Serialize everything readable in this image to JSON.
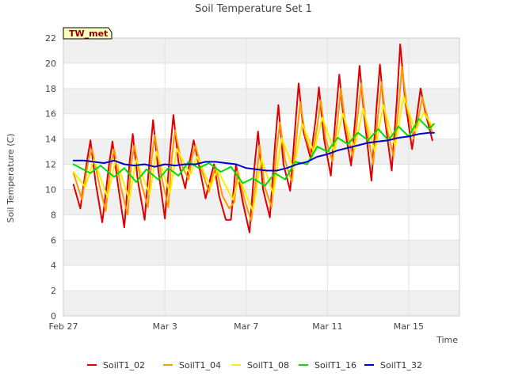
{
  "chart_data": {
    "type": "line",
    "title": "Soil Temperature Set 1",
    "xlabel": "Time",
    "ylabel": "Soil Temperature (C)",
    "badge": "TW_met",
    "ylim": [
      0,
      22
    ],
    "xlim": [
      "2000-02-27",
      "2000-03-17 12:00"
    ],
    "x_ticks": [
      "Feb 27",
      "Mar 3",
      "Mar 7",
      "Mar 11",
      "Mar 15"
    ],
    "y_ticks": [
      0,
      2,
      4,
      6,
      8,
      10,
      12,
      14,
      16,
      18,
      20,
      22
    ],
    "grid": "horizontal bands",
    "legend": "bottom",
    "colors": {
      "SoilT1_02": "#dd0000",
      "SoilT1_04": "#ff9900",
      "SoilT1_08": "#ffee00",
      "SoilT1_16": "#00dd00",
      "SoilT1_32": "#0000cc",
      "band": "#f0f0f0",
      "badge_fill": "#ffffc0"
    },
    "series": [
      {
        "name": "SoilT1_02",
        "points": [
          [
            "2000-02-27 12:00",
            10.4
          ],
          [
            "2000-02-27 20:00",
            8.5
          ],
          [
            "2000-02-28 04:00",
            12.3
          ],
          [
            "2000-02-28 08:00",
            13.9
          ],
          [
            "2000-02-28 14:00",
            10.6
          ],
          [
            "2000-02-28 22:00",
            7.4
          ],
          [
            "2000-02-29 06:00",
            12.0
          ],
          [
            "2000-02-29 10:00",
            13.8
          ],
          [
            "2000-02-29 16:00",
            10.6
          ],
          [
            "2000-03-01 00:00",
            7.0
          ],
          [
            "2000-03-01 06:00",
            12.0
          ],
          [
            "2000-03-01 10:00",
            14.4
          ],
          [
            "2000-03-01 16:00",
            10.7
          ],
          [
            "2000-03-02 00:00",
            7.6
          ],
          [
            "2000-03-02 06:00",
            12.5
          ],
          [
            "2000-03-02 10:00",
            15.5
          ],
          [
            "2000-03-02 16:00",
            11.6
          ],
          [
            "2000-03-03 00:00",
            7.7
          ],
          [
            "2000-03-03 06:00",
            13.0
          ],
          [
            "2000-03-03 10:00",
            15.9
          ],
          [
            "2000-03-03 16:00",
            12.2
          ],
          [
            "2000-03-04 00:00",
            10.1
          ],
          [
            "2000-03-04 06:00",
            12.5
          ],
          [
            "2000-03-04 10:00",
            13.9
          ],
          [
            "2000-03-04 16:00",
            12.0
          ],
          [
            "2000-03-05 00:00",
            9.3
          ],
          [
            "2000-03-05 06:00",
            11.0
          ],
          [
            "2000-03-05 10:00",
            12.0
          ],
          [
            "2000-03-05 16:00",
            9.5
          ],
          [
            "2000-03-06 00:00",
            7.6
          ],
          [
            "2000-03-06 06:00",
            7.6
          ],
          [
            "2000-03-06 12:00",
            12.0
          ],
          [
            "2000-03-06 20:00",
            9.0
          ],
          [
            "2000-03-07 04:00",
            6.6
          ],
          [
            "2000-03-07 10:00",
            12.0
          ],
          [
            "2000-03-07 14:00",
            14.6
          ],
          [
            "2000-03-07 20:00",
            10.0
          ],
          [
            "2000-03-08 04:00",
            7.8
          ],
          [
            "2000-03-08 10:00",
            13.5
          ],
          [
            "2000-03-08 14:00",
            16.7
          ],
          [
            "2000-03-08 20:00",
            12.0
          ],
          [
            "2000-03-09 04:00",
            9.9
          ],
          [
            "2000-03-09 10:00",
            15.0
          ],
          [
            "2000-03-09 14:00",
            18.4
          ],
          [
            "2000-03-09 20:00",
            14.5
          ],
          [
            "2000-03-10 04:00",
            12.5
          ],
          [
            "2000-03-10 10:00",
            15.5
          ],
          [
            "2000-03-10 14:00",
            18.1
          ],
          [
            "2000-03-10 20:00",
            14.0
          ],
          [
            "2000-03-11 04:00",
            11.1
          ],
          [
            "2000-03-11 10:00",
            16.0
          ],
          [
            "2000-03-11 14:00",
            19.1
          ],
          [
            "2000-03-11 20:00",
            15.0
          ],
          [
            "2000-03-12 04:00",
            11.9
          ],
          [
            "2000-03-12 10:00",
            16.5
          ],
          [
            "2000-03-12 14:00",
            19.8
          ],
          [
            "2000-03-12 20:00",
            15.5
          ],
          [
            "2000-03-13 04:00",
            10.7
          ],
          [
            "2000-03-13 10:00",
            16.5
          ],
          [
            "2000-03-13 14:00",
            19.9
          ],
          [
            "2000-03-13 20:00",
            15.5
          ],
          [
            "2000-03-14 04:00",
            11.5
          ],
          [
            "2000-03-14 10:00",
            17.0
          ],
          [
            "2000-03-14 14:00",
            21.5
          ],
          [
            "2000-03-14 20:00",
            17.0
          ],
          [
            "2000-03-15 04:00",
            13.2
          ],
          [
            "2000-03-15 10:00",
            16.0
          ],
          [
            "2000-03-15 14:00",
            18.0
          ],
          [
            "2000-03-15 20:00",
            16.0
          ],
          [
            "2000-03-16 04:00",
            13.9
          ]
        ]
      },
      {
        "name": "SoilT1_04",
        "points": [
          [
            "2000-02-27 12:00",
            11.3
          ],
          [
            "2000-02-27 22:00",
            9.2
          ],
          [
            "2000-02-28 06:00",
            12.5
          ],
          [
            "2000-02-28 10:00",
            13.2
          ],
          [
            "2000-02-28 18:00",
            10.5
          ],
          [
            "2000-02-29 02:00",
            8.3
          ],
          [
            "2000-02-29 08:00",
            11.9
          ],
          [
            "2000-02-29 12:00",
            13.2
          ],
          [
            "2000-02-29 20:00",
            10.2
          ],
          [
            "2000-03-01 04:00",
            8.0
          ],
          [
            "2000-03-01 08:00",
            12.0
          ],
          [
            "2000-03-01 12:00",
            13.5
          ],
          [
            "2000-03-01 20:00",
            10.5
          ],
          [
            "2000-03-02 04:00",
            8.6
          ],
          [
            "2000-03-02 08:00",
            12.2
          ],
          [
            "2000-03-02 12:00",
            14.3
          ],
          [
            "2000-03-02 20:00",
            11.0
          ],
          [
            "2000-03-03 04:00",
            8.6
          ],
          [
            "2000-03-03 08:00",
            12.5
          ],
          [
            "2000-03-03 12:00",
            14.7
          ],
          [
            "2000-03-03 20:00",
            11.9
          ],
          [
            "2000-03-04 04:00",
            10.8
          ],
          [
            "2000-03-04 08:00",
            12.5
          ],
          [
            "2000-03-04 12:00",
            13.5
          ],
          [
            "2000-03-04 20:00",
            11.4
          ],
          [
            "2000-03-05 04:00",
            9.8
          ],
          [
            "2000-03-05 08:00",
            11.0
          ],
          [
            "2000-03-05 12:00",
            11.8
          ],
          [
            "2000-03-05 20:00",
            9.5
          ],
          [
            "2000-03-06 04:00",
            8.5
          ],
          [
            "2000-03-06 10:00",
            9.0
          ],
          [
            "2000-03-06 14:00",
            11.5
          ],
          [
            "2000-03-06 22:00",
            9.2
          ],
          [
            "2000-03-07 06:00",
            7.5
          ],
          [
            "2000-03-07 12:00",
            11.0
          ],
          [
            "2000-03-07 16:00",
            13.5
          ],
          [
            "2000-03-07 22:00",
            10.2
          ],
          [
            "2000-03-08 06:00",
            8.6
          ],
          [
            "2000-03-08 12:00",
            13.2
          ],
          [
            "2000-03-08 16:00",
            15.3
          ],
          [
            "2000-03-08 22:00",
            12.3
          ],
          [
            "2000-03-09 06:00",
            10.6
          ],
          [
            "2000-03-09 12:00",
            14.5
          ],
          [
            "2000-03-09 16:00",
            16.9
          ],
          [
            "2000-03-09 22:00",
            14.2
          ],
          [
            "2000-03-10 06:00",
            12.6
          ],
          [
            "2000-03-10 12:00",
            15.0
          ],
          [
            "2000-03-10 16:00",
            17.1
          ],
          [
            "2000-03-10 22:00",
            14.0
          ],
          [
            "2000-03-11 06:00",
            12.2
          ],
          [
            "2000-03-11 12:00",
            15.5
          ],
          [
            "2000-03-11 16:00",
            18.0
          ],
          [
            "2000-03-11 22:00",
            14.8
          ],
          [
            "2000-03-12 06:00",
            12.6
          ],
          [
            "2000-03-12 12:00",
            16.0
          ],
          [
            "2000-03-12 16:00",
            18.4
          ],
          [
            "2000-03-12 22:00",
            15.0
          ],
          [
            "2000-03-13 06:00",
            12.0
          ],
          [
            "2000-03-13 12:00",
            16.0
          ],
          [
            "2000-03-13 16:00",
            18.5
          ],
          [
            "2000-03-13 22:00",
            15.0
          ],
          [
            "2000-03-14 06:00",
            12.6
          ],
          [
            "2000-03-14 12:00",
            16.5
          ],
          [
            "2000-03-14 16:00",
            19.7
          ],
          [
            "2000-03-14 22:00",
            16.5
          ],
          [
            "2000-03-15 06:00",
            14.0
          ],
          [
            "2000-03-15 12:00",
            15.8
          ],
          [
            "2000-03-15 16:00",
            17.3
          ],
          [
            "2000-03-15 22:00",
            15.8
          ],
          [
            "2000-03-16 04:00",
            14.5
          ]
        ]
      },
      {
        "name": "SoilT1_08",
        "points": [
          [
            "2000-02-27 12:00",
            11.4
          ],
          [
            "2000-02-28 02:00",
            10.2
          ],
          [
            "2000-02-28 12:00",
            12.4
          ],
          [
            "2000-02-29 04:00",
            9.4
          ],
          [
            "2000-02-29 14:00",
            12.4
          ],
          [
            "2000-03-01 06:00",
            9.2
          ],
          [
            "2000-03-01 14:00",
            12.4
          ],
          [
            "2000-03-02 06:00",
            9.6
          ],
          [
            "2000-03-02 14:00",
            13.0
          ],
          [
            "2000-03-03 06:00",
            9.7
          ],
          [
            "2000-03-03 14:00",
            13.2
          ],
          [
            "2000-03-04 06:00",
            11.2
          ],
          [
            "2000-03-04 14:00",
            12.6
          ],
          [
            "2000-03-05 06:00",
            10.2
          ],
          [
            "2000-03-05 14:00",
            11.6
          ],
          [
            "2000-03-06 08:00",
            9.2
          ],
          [
            "2000-03-06 16:00",
            10.9
          ],
          [
            "2000-03-07 08:00",
            8.3
          ],
          [
            "2000-03-07 18:00",
            12.5
          ],
          [
            "2000-03-08 08:00",
            9.6
          ],
          [
            "2000-03-08 18:00",
            14.1
          ],
          [
            "2000-03-09 08:00",
            11.6
          ],
          [
            "2000-03-09 18:00",
            15.2
          ],
          [
            "2000-03-10 08:00",
            13.0
          ],
          [
            "2000-03-10 18:00",
            15.7
          ],
          [
            "2000-03-11 08:00",
            13.0
          ],
          [
            "2000-03-11 18:00",
            16.0
          ],
          [
            "2000-03-12 08:00",
            13.2
          ],
          [
            "2000-03-12 18:00",
            16.4
          ],
          [
            "2000-03-13 08:00",
            13.0
          ],
          [
            "2000-03-13 18:00",
            16.7
          ],
          [
            "2000-03-14 08:00",
            13.4
          ],
          [
            "2000-03-14 18:00",
            17.4
          ],
          [
            "2000-03-15 08:00",
            14.6
          ],
          [
            "2000-03-15 18:00",
            16.1
          ],
          [
            "2000-03-16 04:00",
            15.0
          ]
        ]
      },
      {
        "name": "SoilT1_16",
        "points": [
          [
            "2000-02-27 12:00",
            12.0
          ],
          [
            "2000-02-28 08:00",
            11.3
          ],
          [
            "2000-02-28 20:00",
            11.9
          ],
          [
            "2000-02-29 12:00",
            11.0
          ],
          [
            "2000-03-01 00:00",
            11.7
          ],
          [
            "2000-03-01 14:00",
            10.6
          ],
          [
            "2000-03-02 02:00",
            11.6
          ],
          [
            "2000-03-02 16:00",
            10.8
          ],
          [
            "2000-03-03 04:00",
            11.7
          ],
          [
            "2000-03-03 16:00",
            11.1
          ],
          [
            "2000-03-04 04:00",
            12.2
          ],
          [
            "2000-03-04 16:00",
            11.7
          ],
          [
            "2000-03-05 04:00",
            12.1
          ],
          [
            "2000-03-05 18:00",
            11.4
          ],
          [
            "2000-03-06 06:00",
            11.8
          ],
          [
            "2000-03-06 20:00",
            10.5
          ],
          [
            "2000-03-07 08:00",
            10.9
          ],
          [
            "2000-03-07 22:00",
            10.3
          ],
          [
            "2000-03-08 10:00",
            11.3
          ],
          [
            "2000-03-08 22:00",
            10.8
          ],
          [
            "2000-03-09 10:00",
            12.2
          ],
          [
            "2000-03-10 00:00",
            12.0
          ],
          [
            "2000-03-10 12:00",
            13.4
          ],
          [
            "2000-03-11 00:00",
            13.0
          ],
          [
            "2000-03-11 12:00",
            14.1
          ],
          [
            "2000-03-12 00:00",
            13.6
          ],
          [
            "2000-03-12 12:00",
            14.5
          ],
          [
            "2000-03-13 00:00",
            13.9
          ],
          [
            "2000-03-13 12:00",
            14.8
          ],
          [
            "2000-03-14 00:00",
            13.9
          ],
          [
            "2000-03-14 12:00",
            15.0
          ],
          [
            "2000-03-15 00:00",
            14.2
          ],
          [
            "2000-03-15 12:00",
            15.6
          ],
          [
            "2000-03-16 00:00",
            14.8
          ],
          [
            "2000-03-16 06:00",
            15.2
          ]
        ]
      },
      {
        "name": "SoilT1_32",
        "points": [
          [
            "2000-02-27 12:00",
            12.3
          ],
          [
            "2000-02-28 00:00",
            12.3
          ],
          [
            "2000-02-28 12:00",
            12.2
          ],
          [
            "2000-02-29 00:00",
            12.1
          ],
          [
            "2000-02-29 12:00",
            12.3
          ],
          [
            "2000-03-01 00:00",
            12.0
          ],
          [
            "2000-03-01 12:00",
            11.9
          ],
          [
            "2000-03-02 00:00",
            12.0
          ],
          [
            "2000-03-02 12:00",
            11.8
          ],
          [
            "2000-03-03 00:00",
            12.0
          ],
          [
            "2000-03-03 12:00",
            11.9
          ],
          [
            "2000-03-04 00:00",
            12.0
          ],
          [
            "2000-03-04 12:00",
            12.0
          ],
          [
            "2000-03-05 00:00",
            12.2
          ],
          [
            "2000-03-05 12:00",
            12.2
          ],
          [
            "2000-03-06 00:00",
            12.1
          ],
          [
            "2000-03-06 12:00",
            12.0
          ],
          [
            "2000-03-07 00:00",
            11.7
          ],
          [
            "2000-03-07 12:00",
            11.6
          ],
          [
            "2000-03-08 00:00",
            11.5
          ],
          [
            "2000-03-08 12:00",
            11.5
          ],
          [
            "2000-03-09 00:00",
            11.7
          ],
          [
            "2000-03-09 12:00",
            12.0
          ],
          [
            "2000-03-10 00:00",
            12.2
          ],
          [
            "2000-03-10 12:00",
            12.6
          ],
          [
            "2000-03-11 00:00",
            12.8
          ],
          [
            "2000-03-11 12:00",
            13.1
          ],
          [
            "2000-03-12 00:00",
            13.3
          ],
          [
            "2000-03-12 12:00",
            13.5
          ],
          [
            "2000-03-13 00:00",
            13.7
          ],
          [
            "2000-03-13 12:00",
            13.8
          ],
          [
            "2000-03-14 00:00",
            13.9
          ],
          [
            "2000-03-14 12:00",
            14.1
          ],
          [
            "2000-03-15 00:00",
            14.2
          ],
          [
            "2000-03-15 12:00",
            14.4
          ],
          [
            "2000-03-16 00:00",
            14.5
          ],
          [
            "2000-03-16 06:00",
            14.5
          ]
        ]
      }
    ]
  }
}
